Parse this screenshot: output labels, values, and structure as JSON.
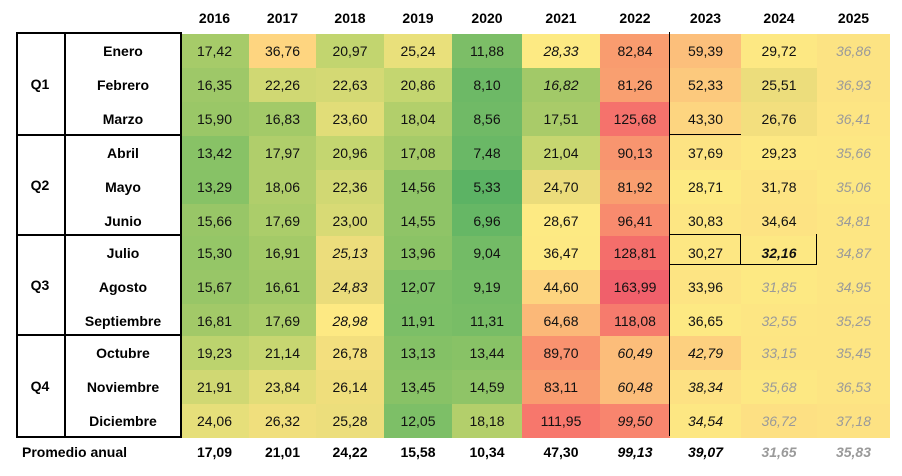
{
  "years": [
    "2016",
    "2017",
    "2018",
    "2019",
    "2020",
    "2021",
    "2022",
    "2023",
    "2024",
    "2025"
  ],
  "quarters": [
    {
      "label": "Q1",
      "months": [
        {
          "name": "Enero",
          "values": [
            "17,42",
            "36,76",
            "20,97",
            "25,24",
            "11,88",
            "28,33",
            "82,84",
            "59,39",
            "29,72",
            "36,86"
          ],
          "styles": [
            "",
            "",
            "",
            "",
            "",
            "it",
            "",
            "",
            "",
            "gr"
          ],
          "colors": [
            "#a6cb69",
            "#fed580",
            "#c2d56f",
            "#e9e07b",
            "#7cbe67",
            "#fdea83",
            "#f99c6f",
            "#fcbf7b",
            "#fde883",
            "#fce383"
          ]
        },
        {
          "name": "Febrero",
          "values": [
            "16,35",
            "22,26",
            "22,63",
            "20,86",
            "8,10",
            "16,82",
            "81,26",
            "52,33",
            "25,51",
            "36,93"
          ],
          "styles": [
            "",
            "",
            "",
            "",
            "",
            "it",
            "",
            "",
            "",
            "gr"
          ],
          "colors": [
            "#9ec868",
            "#d0d873",
            "#d4d974",
            "#c4d670",
            "#6db966",
            "#a2c968",
            "#f99f70",
            "#fcc97d",
            "#ecdd7c",
            "#fce383"
          ]
        },
        {
          "name": "Marzo",
          "values": [
            "15,90",
            "16,83",
            "23,60",
            "18,04",
            "8,56",
            "17,51",
            "125,68",
            "43,30",
            "26,76",
            "36,41"
          ],
          "styles": [
            "",
            "",
            "",
            "",
            "",
            "",
            "",
            "",
            "",
            "gr"
          ],
          "colors": [
            "#9ac767",
            "#a3ca68",
            "#e1dd78",
            "#b2cf6b",
            "#70ba66",
            "#a9cb69",
            "#f5726c",
            "#fdd580",
            "#f3df7e",
            "#fde583"
          ]
        }
      ]
    },
    {
      "label": "Q2",
      "months": [
        {
          "name": "Abril",
          "values": [
            "13,42",
            "17,97",
            "20,96",
            "17,08",
            "7,48",
            "21,04",
            "90,13",
            "37,69",
            "29,23",
            "35,66"
          ],
          "styles": [
            "",
            "",
            "",
            "",
            "",
            "",
            "",
            "",
            "",
            "gr"
          ],
          "colors": [
            "#88c266",
            "#b0ce6b",
            "#c4d670",
            "#a6cb69",
            "#6ab866",
            "#c6d670",
            "#f8956f",
            "#fde383",
            "#fde883",
            "#fde783"
          ]
        },
        {
          "name": "Mayo",
          "values": [
            "13,29",
            "18,06",
            "22,36",
            "14,56",
            "5,33",
            "24,70",
            "81,92",
            "28,71",
            "31,78",
            "35,06"
          ],
          "styles": [
            "",
            "",
            "",
            "",
            "",
            "",
            "",
            "",
            "",
            "gr"
          ],
          "colors": [
            "#87c266",
            "#b0ce6b",
            "#d1d873",
            "#8fc467",
            "#5cb364",
            "#ebdc7b",
            "#f99e6f",
            "#fdea83",
            "#fde483",
            "#fde883"
          ]
        },
        {
          "name": "Junio",
          "values": [
            "15,66",
            "17,69",
            "23,00",
            "14,55",
            "6,96",
            "28,67",
            "96,41",
            "30,83",
            "34,64",
            "34,81"
          ],
          "styles": [
            "",
            "",
            "",
            "",
            "",
            "",
            "",
            "",
            "",
            "gr"
          ],
          "colors": [
            "#98c667",
            "#abcd6a",
            "#d8da75",
            "#8fc467",
            "#66b765",
            "#fdea83",
            "#f88b6e",
            "#fde683",
            "#fde383",
            "#fde683"
          ]
        }
      ]
    },
    {
      "label": "Q3",
      "months": [
        {
          "name": "Julio",
          "values": [
            "15,30",
            "16,91",
            "25,13",
            "13,96",
            "9,04",
            "36,47",
            "128,81",
            "30,27",
            "32,16",
            "34,87"
          ],
          "styles": [
            "",
            "",
            "it",
            "",
            "",
            "",
            "",
            "",
            "bi",
            "gr"
          ],
          "colors": [
            "#95c667",
            "#a4ca68",
            "#ecdd7c",
            "#8bc366",
            "#73bb66",
            "#fde983",
            "#f46e6b",
            "#fde783",
            "#fde883",
            "#fde683"
          ]
        },
        {
          "name": "Agosto",
          "values": [
            "15,67",
            "16,61",
            "24,83",
            "12,07",
            "9,19",
            "44,60",
            "163,99",
            "33,96",
            "31,85",
            "34,95"
          ],
          "styles": [
            "",
            "",
            "it",
            "",
            "",
            "",
            "",
            "",
            "gr",
            "gr"
          ],
          "colors": [
            "#98c667",
            "#a1c968",
            "#eadc7b",
            "#7dbf67",
            "#75bc66",
            "#fdd47f",
            "#f0606b",
            "#fde483",
            "#fde983",
            "#fde683"
          ]
        },
        {
          "name": "Septiembre",
          "values": [
            "16,81",
            "17,69",
            "28,98",
            "11,91",
            "11,31",
            "64,68",
            "118,08",
            "36,65",
            "32,55",
            "35,25"
          ],
          "styles": [
            "",
            "",
            "it",
            "",
            "",
            "",
            "",
            "",
            "gr",
            "gr"
          ],
          "colors": [
            "#a2c968",
            "#abcd6a",
            "#fde983",
            "#7cbf67",
            "#78bd66",
            "#fbb878",
            "#f67b6d",
            "#fde983",
            "#fde683",
            "#fde583"
          ]
        }
      ]
    },
    {
      "label": "Q4",
      "months": [
        {
          "name": "Octubre",
          "values": [
            "19,23",
            "21,14",
            "26,78",
            "13,13",
            "13,44",
            "89,70",
            "60,49",
            "42,79",
            "33,15",
            "35,45"
          ],
          "styles": [
            "",
            "",
            "",
            "",
            "",
            "",
            "it",
            "it",
            "gr",
            "gr"
          ],
          "colors": [
            "#bcd36e",
            "#c7d671",
            "#f3df7e",
            "#84c166",
            "#88c266",
            "#f9926f",
            "#fcbd7a",
            "#fdd07f",
            "#fde583",
            "#fde583"
          ]
        },
        {
          "name": "Noviembre",
          "values": [
            "21,91",
            "23,84",
            "26,14",
            "13,45",
            "14,59",
            "83,11",
            "60,48",
            "38,34",
            "35,68",
            "36,53"
          ],
          "styles": [
            "",
            "",
            "",
            "",
            "",
            "",
            "it",
            "it",
            "gr",
            "gr"
          ],
          "colors": [
            "#d0d873",
            "#e2dd78",
            "#efde7c",
            "#88c266",
            "#8fc467",
            "#f99c6f",
            "#fcbd7a",
            "#fde183",
            "#fde883",
            "#fde583"
          ]
        },
        {
          "name": "Diciembre",
          "values": [
            "24,06",
            "26,32",
            "25,28",
            "12,05",
            "18,18",
            "111,95",
            "99,50",
            "34,54",
            "36,72",
            "37,18"
          ],
          "styles": [
            "",
            "",
            "",
            "",
            "",
            "",
            "it",
            "it",
            "gr",
            "gr"
          ],
          "colors": [
            "#e6df7a",
            "#f0df7d",
            "#ecde7c",
            "#7dbf67",
            "#b3cf6b",
            "#f7776c",
            "#f8856e",
            "#fde783",
            "#fde083",
            "#fde283"
          ]
        }
      ]
    }
  ],
  "footer": {
    "label": "Promedio anual",
    "values": [
      "17,09",
      "21,01",
      "24,22",
      "15,58",
      "10,34",
      "47,30",
      "99,13",
      "39,07",
      "31,65",
      "35,83"
    ],
    "styles": [
      "",
      "",
      "",
      "",
      "",
      "",
      "it",
      "it",
      "gr",
      "gr"
    ]
  }
}
